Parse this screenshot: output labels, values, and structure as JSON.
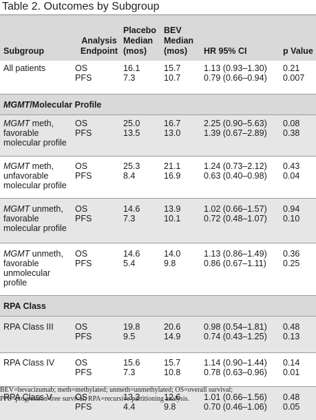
{
  "title": "Table 2. Outcomes by Subgroup",
  "header": {
    "subgroup": "Subgroup",
    "endpoint_l1": "Analysis",
    "endpoint_l2": "Endpoint",
    "placebo_l1": "Placebo",
    "placebo_l2": "Median",
    "placebo_l3": "(mos)",
    "bev_l1": "BEV",
    "bev_l2": "Median",
    "bev_l3": "(mos)",
    "hr": "HR 95% CI",
    "p": "p Value"
  },
  "rows": [
    {
      "s1": "All patients",
      "s2": "",
      "s3": "",
      "e1": "OS",
      "e2": "PFS",
      "pl1": "16.1",
      "pl2": "7.3",
      "bv1": "15.7",
      "bv2": "10.7",
      "hr1": "1.13 (0.93–1.30)",
      "hr2": "0.79 (0.66–0.94)",
      "p1": "0.21",
      "p2": "0.007"
    },
    {
      "sm": "MGMT",
      "sr": " meth,",
      "s2": "favorable",
      "s3": "molecular profile",
      "e1": "OS",
      "e2": "PFS",
      "pl1": "25.0",
      "pl2": "13.5",
      "bv1": "16.7",
      "bv2": "13.0",
      "hr1": "2.25 (0.90–5.63)",
      "hr2": "1.39 (0.67–2.89)",
      "p1": "0.08",
      "p2": "0.38"
    },
    {
      "sm": "MGMT",
      "sr": " meth,",
      "s2": "unfavorable",
      "s3": "molecular profile",
      "e1": "OS",
      "e2": "PFS",
      "pl1": "25.3",
      "pl2": "8.4",
      "bv1": "21.1",
      "bv2": "16.9",
      "hr1": "1.24 (0.73–2.12)",
      "hr2": "0.63 (0.40–0.98)",
      "p1": "0.43",
      "p2": "0.04"
    },
    {
      "sm": "MGMT",
      "sr": " unmeth,",
      "s2": "favorable",
      "s3": "molecular profile",
      "e1": "OS",
      "e2": "PFS",
      "pl1": "14.6",
      "pl2": "7.3",
      "bv1": "13.9",
      "bv2": "10.1",
      "hr1": "1.02 (0.66–1.57)",
      "hr2": "0.72 (0.48–1.07)",
      "p1": "0.94",
      "p2": "0.10"
    },
    {
      "sm": "MGMT",
      "sr": " unmeth,",
      "s2": "favorable",
      "s3": "unmolecular",
      "s4": "profile",
      "e1": "OS",
      "e2": "PFS",
      "pl1": "14.6",
      "pl2": "5.4",
      "bv1": "14.0",
      "bv2": "9.8",
      "hr1": "1.13 (0.86–1.49)",
      "hr2": "0.86 (0.67–1.11)",
      "p1": "0.36",
      "p2": "0.25"
    },
    {
      "s1": "RPA Class III",
      "e1": "OS",
      "e2": "PFS",
      "pl1": "19.8",
      "pl2": "9.5",
      "bv1": "20.6",
      "bv2": "14.9",
      "hr1": "0.98 (0.54–1.81)",
      "hr2": "0.74 (0.43–1.25)",
      "p1": "0.48",
      "p2": "0.13"
    },
    {
      "s1": "RPA Class IV",
      "e1": "OS",
      "e2": "PFS",
      "pl1": "15.6",
      "pl2": "7.3",
      "bv1": "15.7",
      "bv2": "10.8",
      "hr1": "1.14 (0.90–1.44)",
      "hr2": "0.78 (0.63–0.96)",
      "p1": "0.14",
      "p2": "0.01"
    },
    {
      "s1": "RPA Class V",
      "e1": "OS",
      "e2": "PFS",
      "pl1": "13.3",
      "pl2": "4.4",
      "bv1": "12.6",
      "bv2": "9.8",
      "hr1": "1.01 (0.66–1.56)",
      "hr2": "0.70 (0.46–1.06)",
      "p1": "0.48",
      "p2": "0.05"
    }
  ],
  "sections": {
    "mgmt_em": "MGMT",
    "mgmt_rest": "/Molecular Profile",
    "rpa": "RPA Class"
  },
  "footnote": {
    "line1": "BEV=bevacizumab; meth=methylated; unmeth=unmethylated; OS=overall survival;",
    "line2": "PFS=progression-free survival; RPA=recursive partitioning analysis."
  }
}
